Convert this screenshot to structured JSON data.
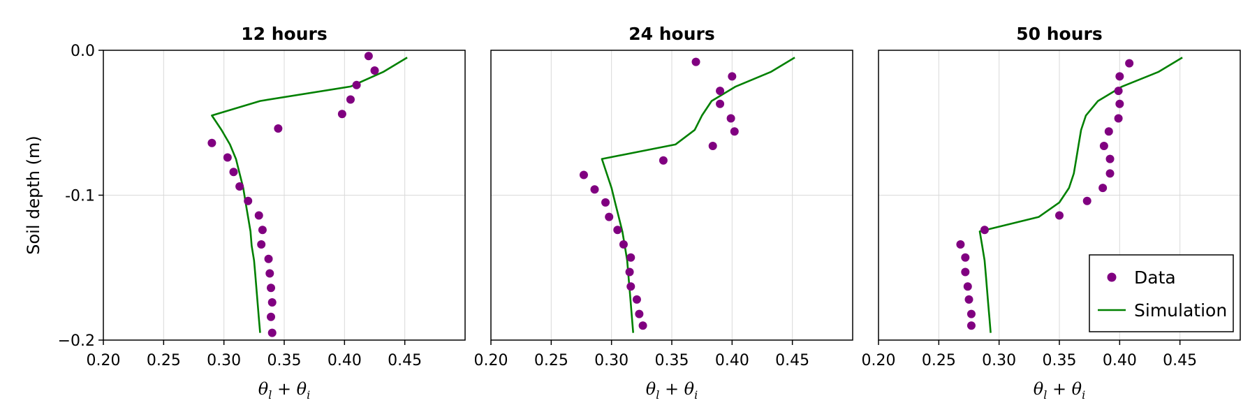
{
  "colors": {
    "data": "#800080",
    "simulation": "#008000",
    "grid": "#d9d9d9"
  },
  "chart_data": [
    {
      "type": "scatter",
      "title": "12 hours",
      "xlabel": "θl + θi",
      "xlabel_parts": [
        "θ",
        "l",
        " + θ",
        "i"
      ],
      "ylabel": "Soil depth (m)",
      "xlim": [
        0.2,
        0.5
      ],
      "ylim": [
        -0.2,
        0.0
      ],
      "xticks": [
        0.2,
        0.25,
        0.3,
        0.35,
        0.4,
        0.45
      ],
      "xtick_labels": [
        "0.20",
        "0.25",
        "0.30",
        "0.35",
        "0.40",
        "0.45"
      ],
      "yticks": [
        0.0,
        -0.1,
        -0.2
      ],
      "ytick_labels": [
        "0.0",
        "-0.1",
        "−0.2"
      ],
      "grid": true,
      "series": [
        {
          "name": "Data",
          "kind": "scatter",
          "points": [
            [
              0.42,
              -0.004
            ],
            [
              0.425,
              -0.014
            ],
            [
              0.41,
              -0.024
            ],
            [
              0.405,
              -0.034
            ],
            [
              0.398,
              -0.044
            ],
            [
              0.345,
              -0.054
            ],
            [
              0.29,
              -0.064
            ],
            [
              0.303,
              -0.074
            ],
            [
              0.308,
              -0.084
            ],
            [
              0.313,
              -0.094
            ],
            [
              0.32,
              -0.104
            ],
            [
              0.329,
              -0.114
            ],
            [
              0.332,
              -0.124
            ],
            [
              0.331,
              -0.134
            ],
            [
              0.337,
              -0.144
            ],
            [
              0.338,
              -0.154
            ],
            [
              0.339,
              -0.164
            ],
            [
              0.34,
              -0.174
            ],
            [
              0.339,
              -0.184
            ],
            [
              0.34,
              -0.195
            ]
          ]
        },
        {
          "name": "Simulation",
          "kind": "line",
          "points": [
            [
              0.452,
              -0.005
            ],
            [
              0.432,
              -0.015
            ],
            [
              0.405,
              -0.025
            ],
            [
              0.33,
              -0.035
            ],
            [
              0.29,
              -0.045
            ],
            [
              0.298,
              -0.055
            ],
            [
              0.305,
              -0.065
            ],
            [
              0.31,
              -0.075
            ],
            [
              0.313,
              -0.085
            ],
            [
              0.316,
              -0.095
            ],
            [
              0.318,
              -0.105
            ],
            [
              0.32,
              -0.115
            ],
            [
              0.322,
              -0.125
            ],
            [
              0.323,
              -0.135
            ],
            [
              0.325,
              -0.145
            ],
            [
              0.326,
              -0.155
            ],
            [
              0.327,
              -0.165
            ],
            [
              0.328,
              -0.175
            ],
            [
              0.329,
              -0.185
            ],
            [
              0.33,
              -0.195
            ]
          ]
        }
      ]
    },
    {
      "type": "scatter",
      "title": "24 hours",
      "xlabel": "θl + θi",
      "xlabel_parts": [
        "θ",
        "l",
        " + θ",
        "i"
      ],
      "xlim": [
        0.2,
        0.5
      ],
      "ylim": [
        -0.2,
        0.0
      ],
      "xticks": [
        0.2,
        0.25,
        0.3,
        0.35,
        0.4,
        0.45
      ],
      "xtick_labels": [
        "0.20",
        "0.25",
        "0.30",
        "0.35",
        "0.40",
        "0.45"
      ],
      "grid": true,
      "series": [
        {
          "name": "Data",
          "kind": "scatter",
          "points": [
            [
              0.37,
              -0.008
            ],
            [
              0.4,
              -0.018
            ],
            [
              0.39,
              -0.028
            ],
            [
              0.39,
              -0.037
            ],
            [
              0.399,
              -0.047
            ],
            [
              0.402,
              -0.056
            ],
            [
              0.384,
              -0.066
            ],
            [
              0.343,
              -0.076
            ],
            [
              0.277,
              -0.086
            ],
            [
              0.286,
              -0.096
            ],
            [
              0.295,
              -0.105
            ],
            [
              0.298,
              -0.115
            ],
            [
              0.305,
              -0.124
            ],
            [
              0.31,
              -0.134
            ],
            [
              0.316,
              -0.143
            ],
            [
              0.315,
              -0.153
            ],
            [
              0.316,
              -0.163
            ],
            [
              0.321,
              -0.172
            ],
            [
              0.323,
              -0.182
            ],
            [
              0.326,
              -0.19
            ]
          ]
        },
        {
          "name": "Simulation",
          "kind": "line",
          "points": [
            [
              0.452,
              -0.005
            ],
            [
              0.432,
              -0.015
            ],
            [
              0.403,
              -0.025
            ],
            [
              0.383,
              -0.035
            ],
            [
              0.375,
              -0.045
            ],
            [
              0.369,
              -0.055
            ],
            [
              0.353,
              -0.065
            ],
            [
              0.292,
              -0.075
            ],
            [
              0.296,
              -0.085
            ],
            [
              0.3,
              -0.095
            ],
            [
              0.303,
              -0.105
            ],
            [
              0.306,
              -0.115
            ],
            [
              0.309,
              -0.125
            ],
            [
              0.311,
              -0.135
            ],
            [
              0.313,
              -0.145
            ],
            [
              0.314,
              -0.155
            ],
            [
              0.315,
              -0.165
            ],
            [
              0.316,
              -0.175
            ],
            [
              0.317,
              -0.185
            ],
            [
              0.318,
              -0.195
            ]
          ]
        }
      ]
    },
    {
      "type": "scatter",
      "title": "50 hours",
      "xlabel": "θl + θi",
      "xlabel_parts": [
        "θ",
        "l",
        " + θ",
        "i"
      ],
      "xlim": [
        0.2,
        0.5
      ],
      "ylim": [
        -0.2,
        0.0
      ],
      "xticks": [
        0.2,
        0.25,
        0.3,
        0.35,
        0.4,
        0.45
      ],
      "xtick_labels": [
        "0.20",
        "0.25",
        "0.30",
        "0.35",
        "0.40",
        "0.45"
      ],
      "grid": true,
      "legend": {
        "position": "bottom-right",
        "entries": [
          "Data",
          "Simulation"
        ]
      },
      "series": [
        {
          "name": "Data",
          "kind": "scatter",
          "points": [
            [
              0.408,
              -0.009
            ],
            [
              0.4,
              -0.018
            ],
            [
              0.399,
              -0.028
            ],
            [
              0.4,
              -0.037
            ],
            [
              0.399,
              -0.047
            ],
            [
              0.391,
              -0.056
            ],
            [
              0.387,
              -0.066
            ],
            [
              0.392,
              -0.075
            ],
            [
              0.392,
              -0.085
            ],
            [
              0.386,
              -0.095
            ],
            [
              0.373,
              -0.104
            ],
            [
              0.35,
              -0.114
            ],
            [
              0.288,
              -0.124
            ],
            [
              0.268,
              -0.134
            ],
            [
              0.272,
              -0.143
            ],
            [
              0.272,
              -0.153
            ],
            [
              0.274,
              -0.163
            ],
            [
              0.275,
              -0.172
            ],
            [
              0.277,
              -0.182
            ],
            [
              0.277,
              -0.19
            ]
          ]
        },
        {
          "name": "Simulation",
          "kind": "line",
          "points": [
            [
              0.452,
              -0.005
            ],
            [
              0.432,
              -0.015
            ],
            [
              0.402,
              -0.025
            ],
            [
              0.382,
              -0.035
            ],
            [
              0.372,
              -0.045
            ],
            [
              0.368,
              -0.055
            ],
            [
              0.366,
              -0.065
            ],
            [
              0.364,
              -0.075
            ],
            [
              0.362,
              -0.085
            ],
            [
              0.358,
              -0.095
            ],
            [
              0.35,
              -0.105
            ],
            [
              0.333,
              -0.115
            ],
            [
              0.284,
              -0.125
            ],
            [
              0.286,
              -0.135
            ],
            [
              0.288,
              -0.145
            ],
            [
              0.289,
              -0.155
            ],
            [
              0.29,
              -0.165
            ],
            [
              0.291,
              -0.175
            ],
            [
              0.292,
              -0.185
            ],
            [
              0.293,
              -0.195
            ]
          ]
        }
      ]
    }
  ]
}
